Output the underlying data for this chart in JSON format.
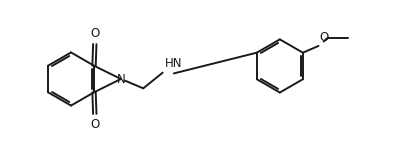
{
  "bg_color": "#ffffff",
  "line_color": "#1a1a1a",
  "line_width": 1.4,
  "font_size": 8.5,
  "fig_width": 4.18,
  "fig_height": 1.58,
  "dpi": 100,
  "xlim": [
    0,
    10.5
  ],
  "ylim": [
    0,
    4.2
  ]
}
